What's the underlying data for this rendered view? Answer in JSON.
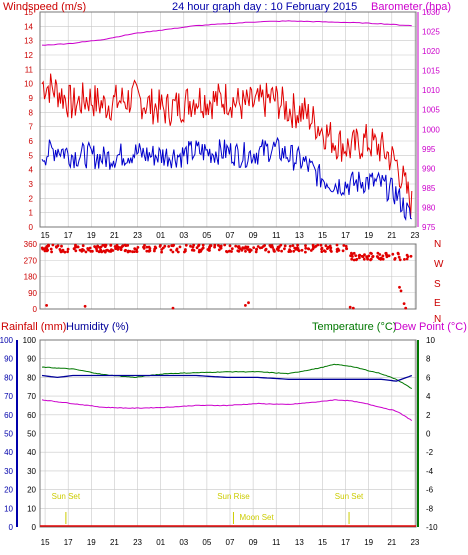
{
  "chart_data": [
    {
      "type": "line",
      "panel": "wind-baro",
      "title": "24 hour graph day : 10 February 2015",
      "left_label": "Windspeed (m/s)",
      "right_label": "Barometer (hpa)",
      "x_ticks": [
        "15",
        "17",
        "19",
        "21",
        "23",
        "01",
        "03",
        "05",
        "07",
        "09",
        "11",
        "13",
        "15",
        "17",
        "19",
        "21",
        "23"
      ],
      "y_left": {
        "min": 0,
        "max": 15,
        "ticks": [
          0,
          1,
          2,
          3,
          4,
          5,
          6,
          7,
          8,
          9,
          10,
          11,
          12,
          13,
          14,
          15
        ]
      },
      "y_right": {
        "min": 975,
        "max": 1030,
        "ticks": [
          975,
          980,
          985,
          990,
          995,
          1000,
          1005,
          1010,
          1015,
          1020,
          1025,
          1030
        ]
      },
      "grid": true,
      "colors": {
        "gust": "#e00000",
        "wind": "#0000cc",
        "baro": "#cc00cc",
        "left_axis": "#cc0000",
        "right_axis": "#cc00cc",
        "title": "#0000aa",
        "grid": "#c8c8c8"
      },
      "series": [
        {
          "key": "gust",
          "hours": [
            0,
            1,
            2,
            3,
            4,
            5,
            6,
            7,
            8,
            9,
            10,
            11,
            12,
            13,
            14,
            15,
            16,
            17,
            18,
            19,
            20,
            21,
            22,
            23,
            24
          ],
          "values": [
            10,
            9.5,
            8.5,
            9,
            8.5,
            8.8,
            9,
            8.5,
            8.2,
            8.5,
            9,
            8.8,
            9,
            8.5,
            8.6,
            9,
            8.2,
            8,
            7,
            6,
            5.5,
            6,
            5.5,
            4.5,
            1.5
          ]
        },
        {
          "key": "wind",
          "hours": [
            0,
            1,
            2,
            3,
            4,
            5,
            6,
            7,
            8,
            9,
            10,
            11,
            12,
            13,
            14,
            15,
            16,
            17,
            18,
            19,
            20,
            21,
            22,
            23,
            24
          ],
          "values": [
            5,
            5.5,
            5,
            5,
            4.8,
            5,
            5.2,
            5,
            5,
            5,
            5.3,
            5.2,
            5.3,
            5,
            5.2,
            5.5,
            5,
            4.5,
            3.5,
            3,
            3,
            3.2,
            3,
            2.3,
            0.5
          ]
        },
        {
          "key": "baro",
          "hours": [
            0,
            2,
            4,
            6,
            8,
            10,
            12,
            14,
            16,
            18,
            20,
            22,
            24
          ],
          "values": [
            1021.5,
            1022,
            1023,
            1024.5,
            1025.5,
            1026.5,
            1027,
            1027.5,
            1027.7,
            1027.5,
            1027.3,
            1027,
            1026.5
          ]
        }
      ]
    },
    {
      "type": "scatter",
      "panel": "wind-direction",
      "y_ticks": [
        0,
        90,
        180,
        270,
        360
      ],
      "compass_labels": [
        "N",
        "W",
        "S",
        "E",
        "N"
      ],
      "color": "#e00000",
      "bands": [
        {
          "from_hour": 0,
          "to_hour": 20,
          "center": 335
        },
        {
          "from_hour": 20,
          "to_hour": 24,
          "center": 290
        }
      ],
      "outliers": [
        [
          0.3,
          20
        ],
        [
          2.8,
          15
        ],
        [
          8.5,
          5
        ],
        [
          13.2,
          20
        ],
        [
          13.4,
          35
        ],
        [
          20,
          10
        ],
        [
          20.2,
          5
        ],
        [
          23.2,
          120
        ],
        [
          23.3,
          100
        ],
        [
          23.5,
          30
        ],
        [
          23.6,
          5
        ]
      ]
    },
    {
      "type": "line",
      "panel": "rain-hum-temp",
      "labels": {
        "rainfall": "Rainfall (mm)",
        "humidity": "Humidity (%)",
        "temperature": "Temperature (°C)",
        "dewpoint": "Dew Point (°C)"
      },
      "y_left_outer": {
        "ticks": [
          0,
          10,
          20,
          30,
          40,
          50,
          60,
          70,
          80,
          90,
          100
        ]
      },
      "y_left_inner": {
        "ticks": [
          0,
          10,
          20,
          30,
          40,
          50,
          60,
          70,
          80,
          90,
          100
        ]
      },
      "y_right": {
        "min": -10,
        "max": 10,
        "ticks": [
          -10,
          -8,
          -6,
          -4,
          -2,
          0,
          2,
          4,
          6,
          8,
          10
        ]
      },
      "colors": {
        "temperature": "#007700",
        "humidity": "#000099",
        "dewpoint": "#cc00cc",
        "rainfall": "#e00000",
        "sun": "#cccc00"
      },
      "series": [
        {
          "key": "temperature",
          "hours": [
            0,
            2,
            4,
            6,
            8,
            10,
            12,
            14,
            16,
            18,
            19,
            20,
            21,
            22,
            23,
            24
          ],
          "values": [
            7.1,
            6.9,
            6.3,
            6.0,
            6.4,
            6.5,
            6.6,
            6.6,
            6.4,
            7.0,
            7.4,
            7.2,
            6.8,
            6.4,
            5.8,
            4.8
          ]
        },
        {
          "key": "humidity",
          "hours": [
            0,
            1,
            2,
            4,
            6,
            8,
            10,
            12,
            14,
            16,
            18,
            20,
            22,
            23,
            24
          ],
          "values": [
            81,
            80,
            81,
            81,
            81,
            81,
            81,
            80,
            80,
            79,
            79,
            79,
            79,
            78,
            81
          ]
        },
        {
          "key": "dewpoint",
          "hours": [
            0,
            2,
            4,
            6,
            8,
            10,
            12,
            14,
            16,
            18,
            19,
            20,
            21,
            22,
            23,
            24
          ],
          "values": [
            3.6,
            3.2,
            2.8,
            2.7,
            2.8,
            3.0,
            3.0,
            3.2,
            3.1,
            3.4,
            3.6,
            3.5,
            3.2,
            2.8,
            2.4,
            1.4
          ]
        }
      ],
      "sun_events": [
        {
          "label": "Sun Set",
          "hour": 2.8
        },
        {
          "label": "Sun Rise",
          "hour": 17.3
        },
        {
          "label": "Sun Set",
          "hour": 27.3
        }
      ],
      "moon_events": [
        {
          "label": "Moon Set",
          "hour": 19.3
        }
      ]
    }
  ]
}
